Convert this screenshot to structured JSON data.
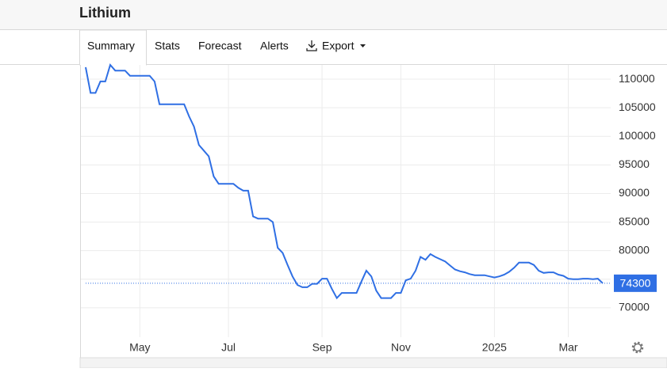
{
  "header": {
    "title": "Lithium"
  },
  "tabs": [
    "Summary",
    "Stats",
    "Forecast",
    "Alerts",
    "Export"
  ],
  "chart_data": {
    "type": "line",
    "categories": [
      null,
      null,
      null,
      null,
      null,
      null,
      null,
      null,
      null,
      null,
      null,
      "May",
      null,
      null,
      null,
      null,
      null,
      null,
      null,
      null,
      null,
      null,
      null,
      null,
      null,
      null,
      null,
      null,
      null,
      "Jul",
      null,
      null,
      null,
      null,
      null,
      null,
      null,
      null,
      null,
      null,
      null,
      null,
      null,
      null,
      null,
      null,
      null,
      null,
      "Sep",
      null,
      null,
      null,
      null,
      null,
      null,
      null,
      null,
      null,
      null,
      null,
      null,
      null,
      null,
      null,
      "Nov",
      null,
      null,
      null,
      null,
      null,
      null,
      null,
      null,
      null,
      null,
      null,
      null,
      null,
      null,
      null,
      null,
      null,
      null,
      "2025",
      null,
      null,
      null,
      null,
      null,
      null,
      null,
      null,
      null,
      null,
      null,
      null,
      null,
      null,
      "Mar",
      null,
      null,
      null,
      null,
      null,
      null,
      null
    ],
    "values": [
      112100,
      107600,
      107600,
      109600,
      109600,
      112500,
      111500,
      111500,
      111500,
      110600,
      110600,
      110600,
      110600,
      110600,
      109600,
      105600,
      105600,
      105600,
      105600,
      105600,
      105600,
      103500,
      101700,
      98500,
      97500,
      96500,
      93000,
      91700,
      91700,
      91700,
      91700,
      91000,
      90500,
      90500,
      86000,
      85600,
      85600,
      85600,
      85000,
      80500,
      79600,
      77500,
      75500,
      74000,
      73600,
      73600,
      74200,
      74200,
      75100,
      75100,
      73300,
      71700,
      72600,
      72600,
      72600,
      72600,
      74600,
      76500,
      75500,
      73000,
      71700,
      71700,
      71700,
      72600,
      72600,
      74800,
      75100,
      76500,
      78900,
      78400,
      79400,
      78900,
      78500,
      78100,
      77400,
      76700,
      76400,
      76200,
      75900,
      75700,
      75700,
      75700,
      75500,
      75300,
      75500,
      75800,
      76300,
      77000,
      77900,
      77900,
      77900,
      77500,
      76500,
      76100,
      76200,
      76200,
      75800,
      75600,
      75100,
      75000,
      75000,
      75100,
      75100,
      75000,
      75100,
      74300
    ],
    "color": "#2f6fe4",
    "ylim": [
      65000,
      112500
    ],
    "yticks": [
      70000,
      75000,
      80000,
      85000,
      90000,
      95000,
      100000,
      105000,
      110000
    ],
    "grid": true
  }
}
